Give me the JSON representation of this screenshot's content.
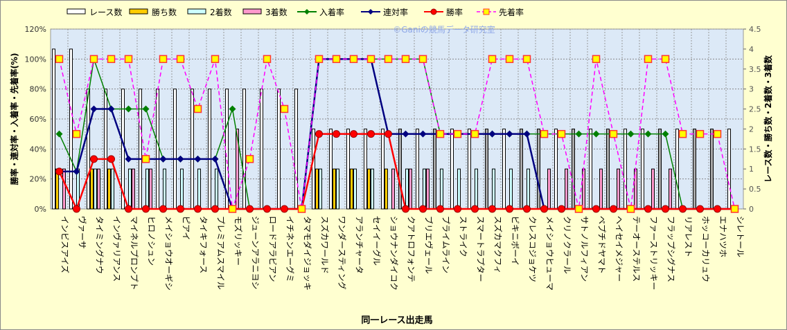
{
  "chart_data": {
    "type": "bar+line",
    "watermark": "©Ganiの競馬データ研究室",
    "xlabel": "同一レース出走馬",
    "ylabel_left": "勝率・連対率・入着率・先着率(%)",
    "ylabel_right": "レース数・勝ち数・2着数・3着数",
    "ylim_left": [
      0,
      120
    ],
    "yticks_left": [
      "0%",
      "20%",
      "40%",
      "60%",
      "80%",
      "100%",
      "120%"
    ],
    "ylim_right": [
      0,
      4.5
    ],
    "yticks_right": [
      "0",
      "0.5",
      "1",
      "1.5",
      "2",
      "2.5",
      "3",
      "3.5",
      "4",
      "4.5"
    ],
    "legend": [
      "レース数",
      "勝ち数",
      "2着数",
      "3着数",
      "入着率",
      "連対率",
      "勝率",
      "先着率"
    ],
    "legend_position": "top",
    "colors": {
      "races": "#ffffff",
      "races_alt": "#a8a8a8",
      "wins": "#ffcc00",
      "second": "#ccffff",
      "third": "#ff99cc",
      "place_rate": "#008000",
      "quinella_rate": "#000080",
      "win_rate": "#ff0000",
      "beat_rate": "#ff00ff"
    },
    "categories": [
      "インビスアイズ",
      "ヴァーサ",
      "タイミングナウ",
      "インヴァリアンス",
      "マイネルプロンプト",
      "ヒロノシュン",
      "メイショウオーギシ",
      "ピアイ",
      "タイキフォース",
      "プレミアムスマイル",
      "モズリッキー",
      "ジューンアラニヨシ",
      "ロードアラビアン",
      "イチネンエーグミ",
      "タマモダイジョッキ",
      "スズカワールド",
      "ワンダースティング",
      "アランチャータ",
      "セイイーグル",
      "ショウナンダイコク",
      "クアトロフォンテ",
      "ブリエヴェール",
      "プライムライン",
      "ストライク",
      "スマートラプター",
      "スズカマクフィ",
      "ビキニボーイ",
      "クレスコジョケツ",
      "メイショウヒューマ",
      "クリノクラール",
      "サトノルフィアン",
      "ペプチドヤマト",
      "ヘイセイメジャー",
      "テーオーステルス",
      "ファーストリッキー",
      "フラップシグナス",
      "リアレスト",
      "ホッコーカリュウ",
      "エナハツホ",
      "シレトール"
    ],
    "races": [
      4,
      4,
      3,
      3,
      3,
      3,
      3,
      3,
      3,
      3,
      3,
      3,
      3,
      3,
      3,
      2,
      2,
      2,
      2,
      2,
      2,
      2,
      2,
      2,
      2,
      2,
      2,
      2,
      2,
      2,
      2,
      2,
      2,
      2,
      2,
      2,
      2,
      2,
      2,
      2
    ],
    "races_alt_flag": [
      0,
      0,
      0,
      0,
      0,
      0,
      0,
      0,
      0,
      0,
      0,
      0,
      0,
      0,
      0,
      0,
      0,
      0,
      0,
      0,
      1,
      0,
      1,
      0,
      0,
      1,
      0,
      1,
      1,
      0,
      1,
      0,
      1,
      0,
      0,
      1,
      0,
      1,
      1,
      0
    ],
    "wins": [
      1,
      0,
      1,
      1,
      0,
      0,
      0,
      0,
      0,
      0,
      0,
      0,
      0,
      0,
      0,
      1,
      1,
      1,
      1,
      1,
      0,
      0,
      0,
      0,
      0,
      0,
      0,
      0,
      0,
      0,
      0,
      0,
      0,
      0,
      0,
      0,
      0,
      0,
      0,
      0
    ],
    "second": [
      0,
      1,
      1,
      1,
      1,
      1,
      1,
      1,
      1,
      1,
      0,
      0,
      0,
      0,
      0,
      1,
      1,
      1,
      1,
      0,
      1,
      1,
      1,
      1,
      1,
      1,
      1,
      1,
      0,
      0,
      0,
      0,
      0,
      0,
      0,
      0,
      0,
      0,
      0,
      0
    ],
    "third": [
      1,
      0,
      1,
      0,
      1,
      1,
      0,
      0,
      0,
      0,
      2,
      0,
      0,
      0,
      0,
      0,
      0,
      0,
      0,
      1,
      1,
      1,
      0,
      0,
      0,
      0,
      0,
      0,
      1,
      1,
      1,
      1,
      1,
      1,
      1,
      1,
      0,
      0,
      0,
      0
    ],
    "place_rate": [
      50,
      25,
      100,
      66.7,
      66.7,
      66.7,
      33.3,
      33.3,
      33.3,
      33.3,
      66.7,
      0,
      0,
      0,
      0,
      100,
      100,
      100,
      100,
      100,
      100,
      100,
      50,
      50,
      50,
      50,
      50,
      50,
      50,
      50,
      50,
      50,
      50,
      50,
      50,
      50,
      0,
      0,
      0,
      0
    ],
    "quinella_rate": [
      25,
      25,
      66.7,
      66.7,
      33.3,
      33.3,
      33.3,
      33.3,
      33.3,
      33.3,
      0,
      0,
      0,
      0,
      0,
      100,
      100,
      100,
      100,
      50,
      50,
      50,
      50,
      50,
      50,
      50,
      50,
      50,
      0,
      0,
      0,
      0,
      0,
      0,
      0,
      0,
      0,
      0,
      0,
      0
    ],
    "win_rate": [
      25,
      0,
      33.3,
      33.3,
      0,
      0,
      0,
      0,
      0,
      0,
      0,
      0,
      0,
      0,
      0,
      50,
      50,
      50,
      50,
      50,
      0,
      0,
      0,
      0,
      0,
      0,
      0,
      0,
      0,
      0,
      0,
      0,
      0,
      0,
      0,
      0,
      0,
      0,
      0,
      0
    ],
    "beat_rate": [
      100,
      50,
      100,
      100,
      100,
      33.3,
      100,
      100,
      66.7,
      100,
      0,
      33.3,
      100,
      66.7,
      0,
      100,
      100,
      100,
      100,
      100,
      100,
      100,
      50,
      50,
      50,
      100,
      100,
      100,
      50,
      50,
      0,
      100,
      50,
      0,
      100,
      100,
      50,
      50,
      50,
      0
    ]
  }
}
